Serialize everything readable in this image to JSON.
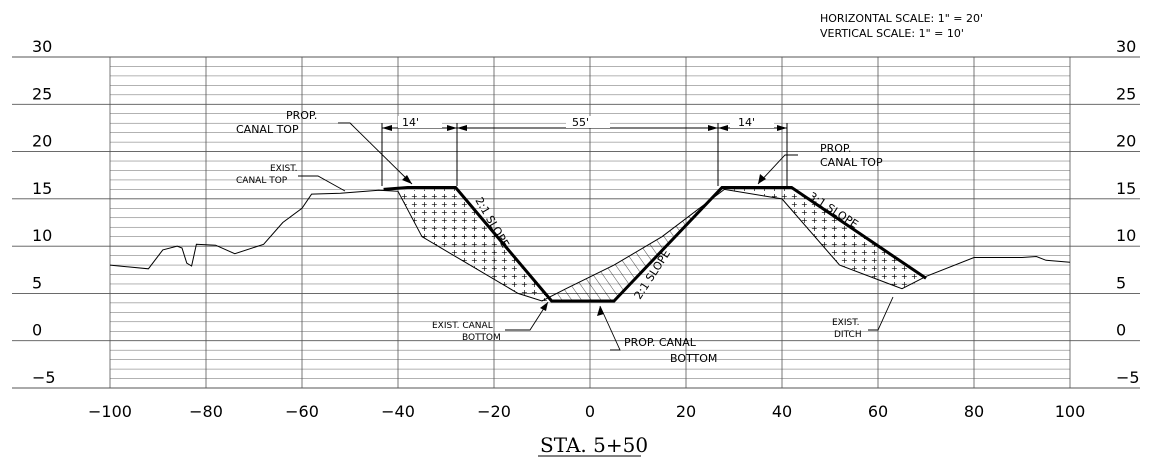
{
  "scale_note": {
    "horizontal": "HORIZONTAL SCALE: 1\" = 20'",
    "vertical": "VERTICAL SCALE: 1\" = 10'"
  },
  "station_title": "STA. 5+50",
  "labels": {
    "prop_canal_top_left": [
      "PROP.",
      "CANAL TOP"
    ],
    "prop_canal_top_right": [
      "PROP.",
      "CANAL TOP"
    ],
    "exist_canal_top": [
      "EXIST.",
      "CANAL TOP"
    ],
    "exist_canal_bottom": [
      "EXIST. CANAL",
      "BOTTOM"
    ],
    "prop_canal_bottom": [
      "PROP. CANAL",
      "BOTTOM"
    ],
    "exist_ditch": [
      "EXIST.",
      "DITCH"
    ],
    "slope_left": "2:1 SLOPE",
    "slope_center": "2:1 SLOPE",
    "slope_right": "3:1 SLOPE"
  },
  "dimensions": {
    "left_berm": "14'",
    "bottom_width": "55'",
    "right_berm": "14'"
  },
  "chart_data": {
    "type": "line",
    "xlim": [
      -100,
      100
    ],
    "ylim": [
      -5,
      30
    ],
    "x_ticks": [
      -100,
      -80,
      -60,
      -40,
      -20,
      0,
      20,
      40,
      60,
      80,
      100
    ],
    "y_ticks": [
      30,
      25,
      20,
      15,
      10,
      5,
      0,
      -5
    ],
    "existing_ground": [
      [
        -100,
        8.0
      ],
      [
        -92,
        7.6
      ],
      [
        -89,
        9.6
      ],
      [
        -86,
        10.0
      ],
      [
        -85,
        9.8
      ],
      [
        -84,
        8.2
      ],
      [
        -83,
        7.9
      ],
      [
        -82,
        10.2
      ],
      [
        -78,
        10.1
      ],
      [
        -74,
        9.2
      ],
      [
        -68,
        10.2
      ],
      [
        -64,
        12.5
      ],
      [
        -60,
        14.0
      ],
      [
        -58,
        15.5
      ],
      [
        -52,
        15.6
      ],
      [
        -44,
        15.9
      ],
      [
        -40,
        15.8
      ],
      [
        -35,
        11.0
      ],
      [
        -25,
        8.0
      ],
      [
        -15,
        5.0
      ],
      [
        -10,
        4.2
      ],
      [
        -5,
        5.5
      ],
      [
        5,
        8.0
      ],
      [
        15,
        11.0
      ],
      [
        28,
        16.0
      ],
      [
        40,
        15.0
      ],
      [
        52,
        8.0
      ],
      [
        65,
        5.5
      ],
      [
        70,
        6.8
      ],
      [
        80,
        8.8
      ],
      [
        90,
        8.8
      ],
      [
        93,
        8.9
      ],
      [
        95,
        8.5
      ],
      [
        100,
        8.3
      ]
    ],
    "proposed_section": [
      [
        -43,
        16.0
      ],
      [
        -38,
        16.2
      ],
      [
        -28,
        16.2
      ],
      [
        -8,
        4.2
      ],
      [
        5,
        4.2
      ],
      [
        27.5,
        16.2
      ],
      [
        42,
        16.2
      ],
      [
        70,
        6.6
      ]
    ]
  }
}
